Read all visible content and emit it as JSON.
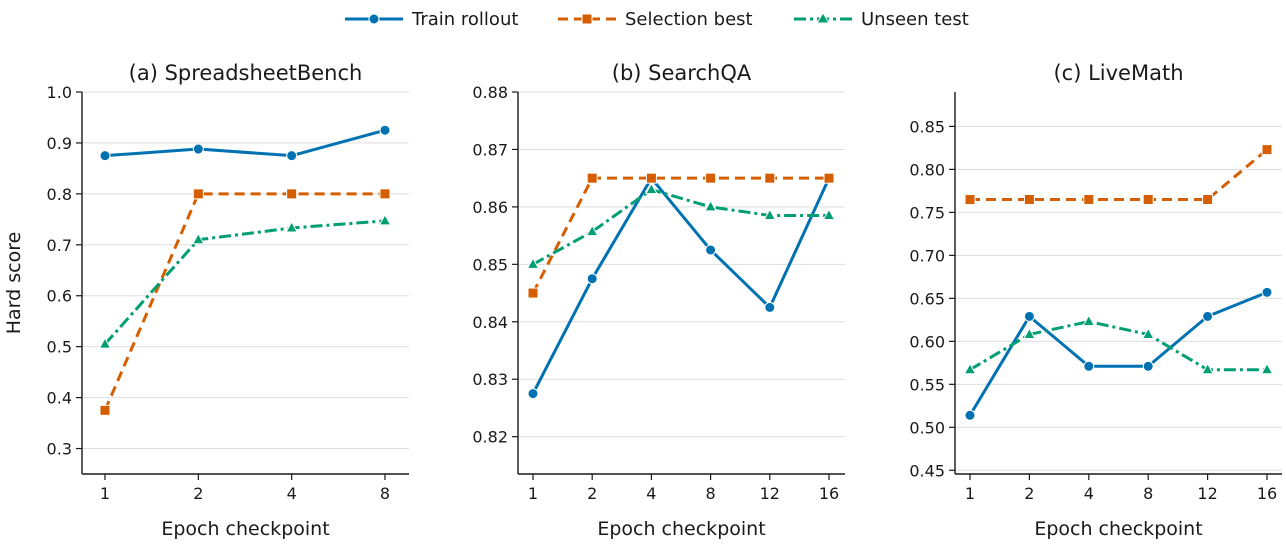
{
  "legend": {
    "placement": "top-center",
    "entries": [
      {
        "label": "Train rollout",
        "color": "#0072B2",
        "marker": "circle",
        "dash": "solid"
      },
      {
        "label": "Selection best",
        "color": "#D55E00",
        "marker": "square",
        "dash": "dashed"
      },
      {
        "label": "Unseen test",
        "color": "#009E73",
        "marker": "triangle",
        "dash": "dashdot"
      }
    ]
  },
  "chart_data": [
    {
      "type": "line",
      "title": "(a) SpreadsheetBench",
      "xlabel": "Epoch checkpoint",
      "ylabel": "Hard score",
      "categories": [
        "1",
        "2",
        "4",
        "8"
      ],
      "ylim": [
        0.25,
        1.0
      ],
      "yticks": [
        "0.3",
        "0.4",
        "0.5",
        "0.6",
        "0.7",
        "0.8",
        "0.9",
        "1.0"
      ],
      "grid": "horizontal",
      "series": [
        {
          "name": "Train rollout",
          "values": [
            0.875,
            0.888,
            0.875,
            0.925
          ]
        },
        {
          "name": "Selection best",
          "values": [
            0.375,
            0.8,
            0.8,
            0.8
          ]
        },
        {
          "name": "Unseen test",
          "values": [
            0.505,
            0.71,
            0.733,
            0.747
          ]
        }
      ]
    },
    {
      "type": "line",
      "title": "(b) SearchQA",
      "xlabel": "Epoch checkpoint",
      "ylabel": "",
      "categories": [
        "1",
        "2",
        "4",
        "8",
        "12",
        "16"
      ],
      "ylim": [
        0.8135,
        0.88
      ],
      "yticks": [
        "0.82",
        "0.83",
        "0.84",
        "0.85",
        "0.86",
        "0.87",
        "0.88"
      ],
      "grid": "horizontal",
      "series": [
        {
          "name": "Train rollout",
          "values": [
            0.8275,
            0.8475,
            0.865,
            0.8525,
            0.8425,
            0.865
          ]
        },
        {
          "name": "Selection best",
          "values": [
            0.845,
            0.865,
            0.865,
            0.865,
            0.865,
            0.865
          ]
        },
        {
          "name": "Unseen test",
          "values": [
            0.85,
            0.8557,
            0.863,
            0.86,
            0.8585,
            0.8585
          ]
        }
      ]
    },
    {
      "type": "line",
      "title": "(c) LiveMath",
      "xlabel": "Epoch checkpoint",
      "ylabel": "",
      "categories": [
        "1",
        "2",
        "4",
        "8",
        "12",
        "16"
      ],
      "ylim": [
        0.4457,
        0.89
      ],
      "yticks": [
        "0.45",
        "0.50",
        "0.55",
        "0.60",
        "0.65",
        "0.70",
        "0.75",
        "0.80",
        "0.85"
      ],
      "grid": "horizontal",
      "series": [
        {
          "name": "Train rollout",
          "values": [
            0.514,
            0.629,
            0.571,
            0.571,
            0.629,
            0.657
          ]
        },
        {
          "name": "Selection best",
          "values": [
            0.765,
            0.765,
            0.765,
            0.765,
            0.765,
            0.823
          ]
        },
        {
          "name": "Unseen test",
          "values": [
            0.567,
            0.608,
            0.623,
            0.608,
            0.567,
            0.567
          ]
        }
      ]
    }
  ]
}
